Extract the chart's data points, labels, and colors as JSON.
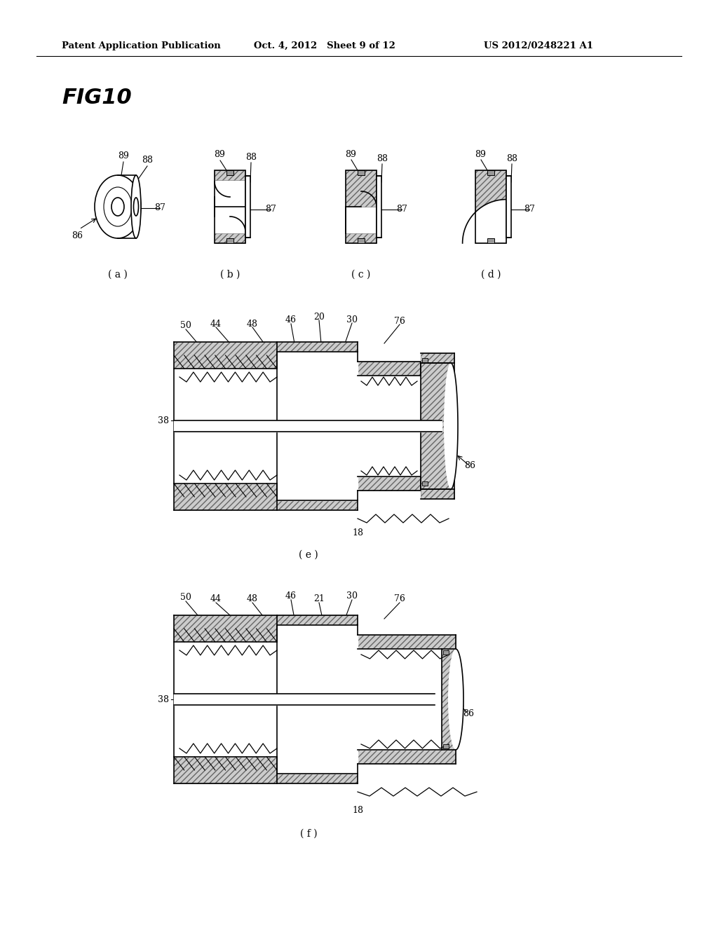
{
  "header_left": "Patent Application Publication",
  "header_mid": "Oct. 4, 2012   Sheet 9 of 12",
  "header_right": "US 2012/0248221 A1",
  "fig_title": "FIG10",
  "background": "#ffffff"
}
